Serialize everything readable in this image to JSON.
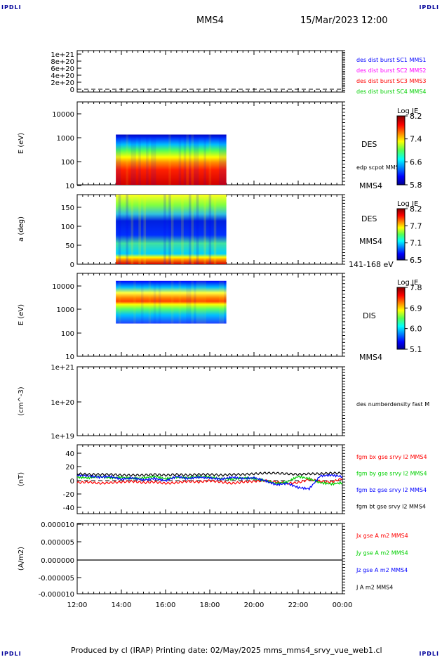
{
  "corner_label": "IPDLI",
  "header": {
    "spacecraft": "MMS4",
    "datetime": "15/Mar/2023 12:00"
  },
  "footer": {
    "text": "Produced by cl (IRAP)   Printing date: 02/May/2025   mms_mms4_srvy_vue_web1.cl"
  },
  "colors": {
    "red": "#ff0000",
    "magenta": "#ff00ff",
    "green": "#00d000",
    "blue": "#0000ff",
    "black": "#000000"
  },
  "chart_data": [
    {
      "type": "line",
      "ytick_labels": [
        "1e+21",
        "8e+20",
        "6e+20",
        "4e+20",
        "2e+20",
        "0"
      ],
      "legend": [
        {
          "label": "des dist burst SC1 MMS1",
          "color": "#0000ff"
        },
        {
          "label": "des dist burst SC2 MMS2",
          "color": "#ff00ff"
        },
        {
          "label": "des dist burst SC3 MMS3",
          "color": "#ff0000"
        },
        {
          "label": "des dist burst SC4 MMS4",
          "color": "#00d000"
        }
      ]
    },
    {
      "type": "heatmap",
      "ylabel": "E (eV)",
      "ytick_labels": [
        "10000",
        "1000",
        "100",
        "10"
      ],
      "y_scale": "log",
      "ylim": [
        10,
        20000
      ],
      "data_range": {
        "t_start": "13:45",
        "t_end": "18:45",
        "e_min": 10,
        "e_max": 1000
      },
      "side_labels": [
        "DES",
        "edp scpot MMS4",
        "MMS4"
      ],
      "colorbar": {
        "title": "Log JE",
        "ticks": [
          "8.2",
          "7.4",
          "6.6",
          "5.8"
        ]
      }
    },
    {
      "type": "heatmap",
      "ylabel": "a (deg)",
      "ytick_labels": [
        "150",
        "100",
        "50",
        "0"
      ],
      "ylim": [
        0,
        180
      ],
      "data_range": {
        "t_start": "13:45",
        "t_end": "18:45"
      },
      "side_labels": [
        "DES",
        "MMS4",
        "141-168 eV"
      ],
      "colorbar": {
        "title": "Log JE",
        "ticks": [
          "8.2",
          "7.7",
          "7.1",
          "6.5"
        ]
      }
    },
    {
      "type": "heatmap",
      "ylabel": "E (eV)",
      "ytick_labels": [
        "10000",
        "1000",
        "100",
        "10"
      ],
      "y_scale": "log",
      "ylim": [
        10,
        20000
      ],
      "data_range": {
        "t_start": "13:45",
        "t_end": "18:45",
        "e_min": 200,
        "e_max": 10000
      },
      "side_labels": [
        "DIS",
        "MMS4"
      ],
      "colorbar": {
        "title": "Log JE",
        "ticks": [
          "7.8",
          "6.9",
          "6.0",
          "5.1"
        ]
      }
    },
    {
      "type": "line",
      "ylabel": "(cm^-3)",
      "ytick_labels": [
        "1e+21",
        "1e+20",
        "1e+19"
      ],
      "legend": [
        {
          "label": "des numberdensity fast M",
          "color": "#000000"
        }
      ]
    },
    {
      "type": "line",
      "ylabel": "(nT)",
      "ytick_labels": [
        "40",
        "20",
        "0",
        "-20",
        "-40"
      ],
      "ylim": [
        -50,
        50
      ],
      "x_hours": [
        0,
        0.5,
        1,
        1.5,
        2,
        2.5,
        3,
        3.5,
        4,
        4.5,
        5,
        5.5,
        6,
        6.5,
        7,
        7.5,
        8,
        8.5,
        9,
        9.5,
        10,
        10.5,
        11,
        11.5,
        12
      ],
      "series": [
        {
          "name": "fgm bx gse srvy l2 MMS4",
          "color": "#ff0000",
          "values": [
            -3,
            -2,
            -4,
            -3,
            -2,
            -1,
            -3,
            -2,
            -4,
            -3,
            -1,
            -2,
            0,
            -2,
            -4,
            -2,
            -1,
            0,
            -2,
            -4,
            -3,
            2,
            -1,
            -2,
            3
          ]
        },
        {
          "name": "fgm by gse srvy l2 MMS4",
          "color": "#00d000",
          "values": [
            5,
            4,
            6,
            4,
            5,
            3,
            4,
            6,
            3,
            5,
            4,
            6,
            5,
            3,
            2,
            4,
            3,
            0,
            -4,
            -2,
            6,
            3,
            -3,
            -5,
            -3
          ]
        },
        {
          "name": "fgm bz gse srvy l2 MMS4",
          "color": "#0000ff",
          "values": [
            8,
            7,
            5,
            6,
            2,
            4,
            1,
            3,
            0,
            6,
            3,
            5,
            4,
            2,
            5,
            3,
            4,
            0,
            -6,
            -4,
            -10,
            -12,
            7,
            8,
            6
          ]
        },
        {
          "name": "fgm bt gse srvy l2 MMS4",
          "color": "#000000",
          "values": [
            10,
            9,
            9,
            9,
            8,
            8,
            8,
            9,
            8,
            9,
            8,
            9,
            9,
            8,
            9,
            9,
            10,
            11,
            11,
            10,
            9,
            10,
            10,
            11,
            11
          ]
        }
      ]
    },
    {
      "type": "line",
      "ylabel": "(A/m2)",
      "ytick_labels": [
        "0.000010",
        "0.000005",
        "0.000000",
        "-0.000005",
        "-0.000010"
      ],
      "ylim": [
        -1e-05,
        1e-05
      ],
      "x": [
        "12:00",
        "14:00",
        "16:00",
        "18:00",
        "20:00",
        "22:00",
        "00:00"
      ],
      "series": [
        {
          "name": "Jx gse A m2 MMS4",
          "color": "#ff0000",
          "values": [
            0,
            0,
            0,
            0,
            0,
            0,
            0
          ]
        },
        {
          "name": "Jy gse A m2 MMS4",
          "color": "#00d000",
          "values": [
            0,
            0,
            0,
            0,
            0,
            0,
            0
          ]
        },
        {
          "name": "Jz gse A m2 MMS4",
          "color": "#0000ff",
          "values": [
            0,
            0,
            0,
            0,
            0,
            0,
            0
          ]
        },
        {
          "name": "J A m2 MMS4",
          "color": "#000000",
          "values": [
            0,
            0,
            0,
            0,
            0,
            0,
            0
          ]
        }
      ]
    }
  ],
  "time_axis": {
    "labels": [
      "12:00",
      "14:00",
      "16:00",
      "18:00",
      "20:00",
      "22:00",
      "00:00"
    ]
  }
}
